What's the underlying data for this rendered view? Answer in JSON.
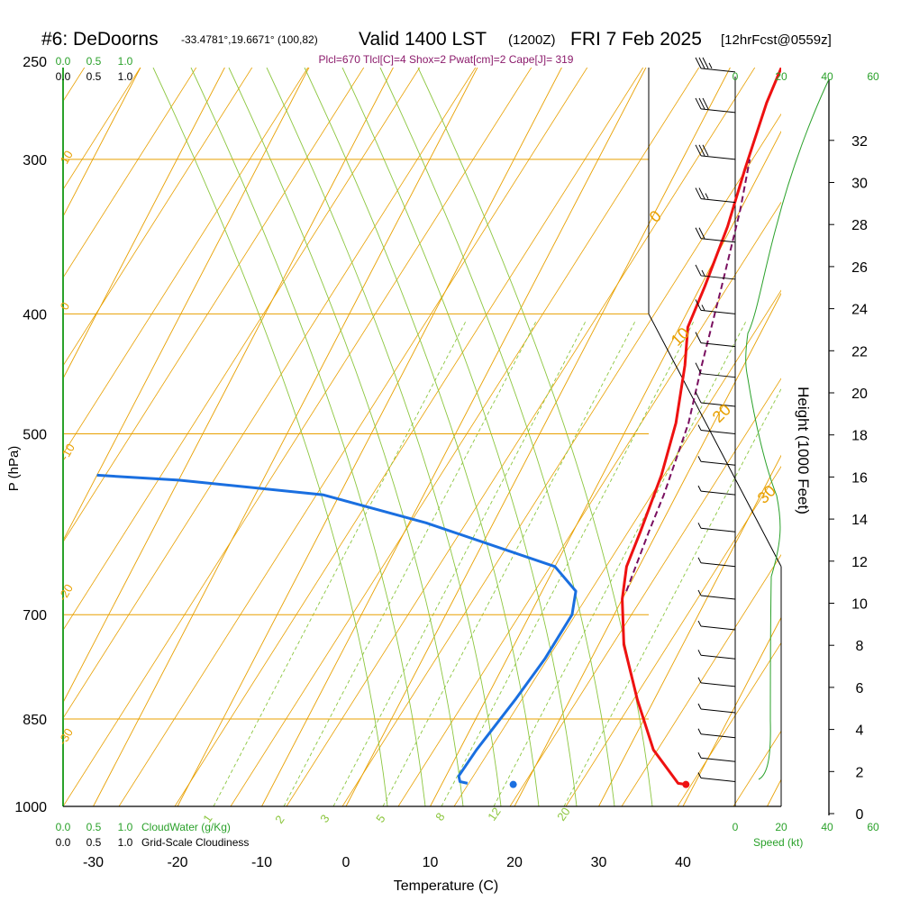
{
  "header": {
    "station": "#6: DeDoorns",
    "coords": "-33.4781°,19.6671° (100,82)",
    "valid_main": "Valid 1400 LST",
    "valid_z": "(1200Z)",
    "date": "FRI 7 Feb 2025",
    "forecast": "[12hrFcst@0559z]",
    "indices": "Plcl=670 Tlcl[C]=4 Shox=2 Pwat[cm]=2 Cape[J]= 319"
  },
  "colors": {
    "temperature": "#ee1111",
    "dewpoint": "#1a6fe0",
    "parcel": "#7a1060",
    "isotherm": "#e8a000",
    "adiabat": "#8cc63f",
    "cloud": "#2aa12a"
  },
  "chart_data": {
    "type": "line",
    "subtype": "skew-T log-P sounding",
    "xlabel": "Temperature (C)",
    "ylabel": "P (hPa)",
    "ylabel_right": "Height (1000 Feet)",
    "x_ticks": [
      "-30",
      "-20",
      "-10",
      "0",
      "10",
      "20",
      "30",
      "40"
    ],
    "pressure_ticks": [
      "250",
      "300",
      "400",
      "500",
      "700",
      "850",
      "1000"
    ],
    "height_ticks": [
      "0",
      "2",
      "4",
      "6",
      "8",
      "10",
      "12",
      "14",
      "16",
      "18",
      "20",
      "22",
      "24",
      "26",
      "28",
      "30",
      "32"
    ],
    "isotherm_labels": [
      "10",
      "0",
      "-10",
      "-20",
      "-30",
      "0",
      "10",
      "20",
      "30"
    ],
    "mixing_ratio_labels": [
      "1",
      "2",
      "3",
      "5",
      "8",
      "12",
      "20"
    ],
    "top_scale_green": [
      "0.0",
      "0.5",
      "1.0"
    ],
    "top_scale_black": [
      "0.0",
      "0.5",
      "1.0"
    ],
    "bottom_scale_green": [
      "0.0",
      "0.5",
      "1.0"
    ],
    "bottom_scale_black": [
      "0.0",
      "0.5",
      "1.0"
    ],
    "cloudwater_label": "CloudWater (g/Kg)",
    "cloudiness_label": "Grid-Scale Cloudiness",
    "wind_scale": [
      "0",
      "20",
      "40",
      "60"
    ],
    "wind_scale_label": "Speed (kt)",
    "surface": {
      "pressure_hpa": 960,
      "temperature_c": 39,
      "dewpoint_c": 18.5
    },
    "series": [
      {
        "name": "Temperature",
        "points_c_hpa": [
          [
            39,
            960
          ],
          [
            38,
            958
          ],
          [
            33,
            900
          ],
          [
            28,
            820
          ],
          [
            23,
            740
          ],
          [
            20,
            680
          ],
          [
            18.5,
            640
          ],
          [
            18,
            600
          ],
          [
            17,
            540
          ],
          [
            15.5,
            490
          ],
          [
            13,
            440
          ],
          [
            11,
            410
          ],
          [
            10.5,
            380
          ],
          [
            9.5,
            340
          ],
          [
            8,
            305
          ],
          [
            6.5,
            270
          ],
          [
            6,
            250
          ]
        ]
      },
      {
        "name": "Dewpoint",
        "points_c_hpa": [
          [
            13,
            958
          ],
          [
            12,
            955
          ],
          [
            11.5,
            945
          ],
          [
            12,
            900
          ],
          [
            13.5,
            820
          ],
          [
            14.5,
            760
          ],
          [
            15,
            700
          ],
          [
            14,
            670
          ],
          [
            10,
            640
          ],
          [
            -8,
            590
          ],
          [
            -22,
            560
          ],
          [
            -40,
            545
          ],
          [
            -50,
            540
          ]
        ]
      },
      {
        "name": "Parcel",
        "points_c_hpa": [
          [
            20,
            670
          ],
          [
            19,
            600
          ],
          [
            18.5,
            560
          ],
          [
            17,
            490
          ],
          [
            15,
            440
          ],
          [
            12.5,
            380
          ],
          [
            10,
            330
          ],
          [
            8,
            300
          ]
        ]
      }
    ],
    "wind_barbs": [
      {
        "pressure_hpa": 255,
        "speed_kt": 35
      },
      {
        "pressure_hpa": 275,
        "speed_kt": 30
      },
      {
        "pressure_hpa": 300,
        "speed_kt": 30
      },
      {
        "pressure_hpa": 325,
        "speed_kt": 25
      },
      {
        "pressure_hpa": 350,
        "speed_kt": 20
      },
      {
        "pressure_hpa": 375,
        "speed_kt": 15
      },
      {
        "pressure_hpa": 400,
        "speed_kt": 15
      },
      {
        "pressure_hpa": 425,
        "speed_kt": 10
      },
      {
        "pressure_hpa": 450,
        "speed_kt": 10
      },
      {
        "pressure_hpa": 475,
        "speed_kt": 10
      },
      {
        "pressure_hpa": 500,
        "speed_kt": 5
      },
      {
        "pressure_hpa": 530,
        "speed_kt": 5
      },
      {
        "pressure_hpa": 560,
        "speed_kt": 5
      },
      {
        "pressure_hpa": 600,
        "speed_kt": 5
      },
      {
        "pressure_hpa": 640,
        "speed_kt": 5
      },
      {
        "pressure_hpa": 680,
        "speed_kt": 5
      },
      {
        "pressure_hpa": 720,
        "speed_kt": 5
      },
      {
        "pressure_hpa": 760,
        "speed_kt": 5
      },
      {
        "pressure_hpa": 800,
        "speed_kt": 5
      },
      {
        "pressure_hpa": 840,
        "speed_kt": 5
      },
      {
        "pressure_hpa": 880,
        "speed_kt": 5
      },
      {
        "pressure_hpa": 920,
        "speed_kt": 5
      },
      {
        "pressure_hpa": 955,
        "speed_kt": 5
      }
    ]
  }
}
